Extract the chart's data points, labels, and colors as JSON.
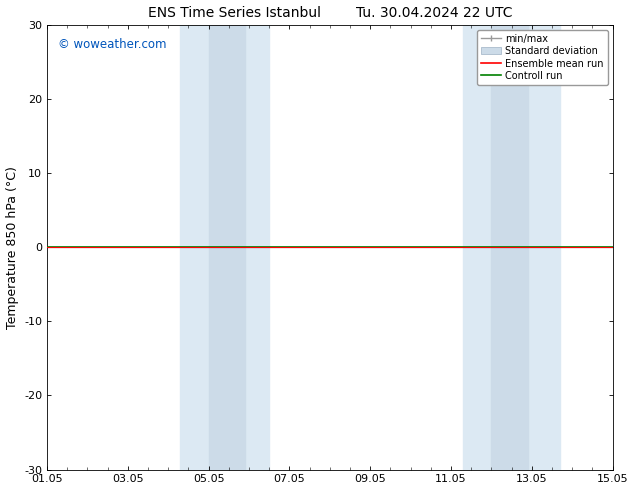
{
  "title_left": "ENS Time Series Istanbul",
  "title_right": "Tu. 30.04.2024 22 UTC",
  "ylabel": "Temperature 850 hPa (°C)",
  "ylim": [
    -30,
    30
  ],
  "yticks": [
    -30,
    -20,
    -10,
    0,
    10,
    20,
    30
  ],
  "xtick_labels": [
    "01.05",
    "03.05",
    "05.05",
    "07.05",
    "09.05",
    "11.05",
    "13.05",
    "15.05"
  ],
  "xtick_positions": [
    0,
    2,
    4,
    6,
    8,
    10,
    12,
    14
  ],
  "shaded_bands": [
    {
      "x_start": 3.3,
      "x_end": 4.0,
      "color": "#dce9f5"
    },
    {
      "x_start": 4.0,
      "x_end": 5.3,
      "color": "#dce9f5"
    },
    {
      "x_start": 10.3,
      "x_end": 11.3,
      "color": "#dce9f5"
    },
    {
      "x_start": 11.3,
      "x_end": 12.7,
      "color": "#dce9f5"
    }
  ],
  "shaded_bands2": [
    {
      "x_start": 3.3,
      "x_end": 5.3
    },
    {
      "x_start": 10.3,
      "x_end": 12.7
    }
  ],
  "zero_line_y": 0,
  "control_run_color": "#008000",
  "ensemble_mean_color": "#ff0000",
  "watermark_text": "© woweather.com",
  "watermark_color": "#0055bb",
  "background_color": "#ffffff",
  "plot_bg_color": "#ffffff",
  "band_color": "#dde8f0",
  "band_inner_color": "#ccdde8",
  "title_fontsize": 10,
  "tick_fontsize": 8,
  "ylabel_fontsize": 9
}
